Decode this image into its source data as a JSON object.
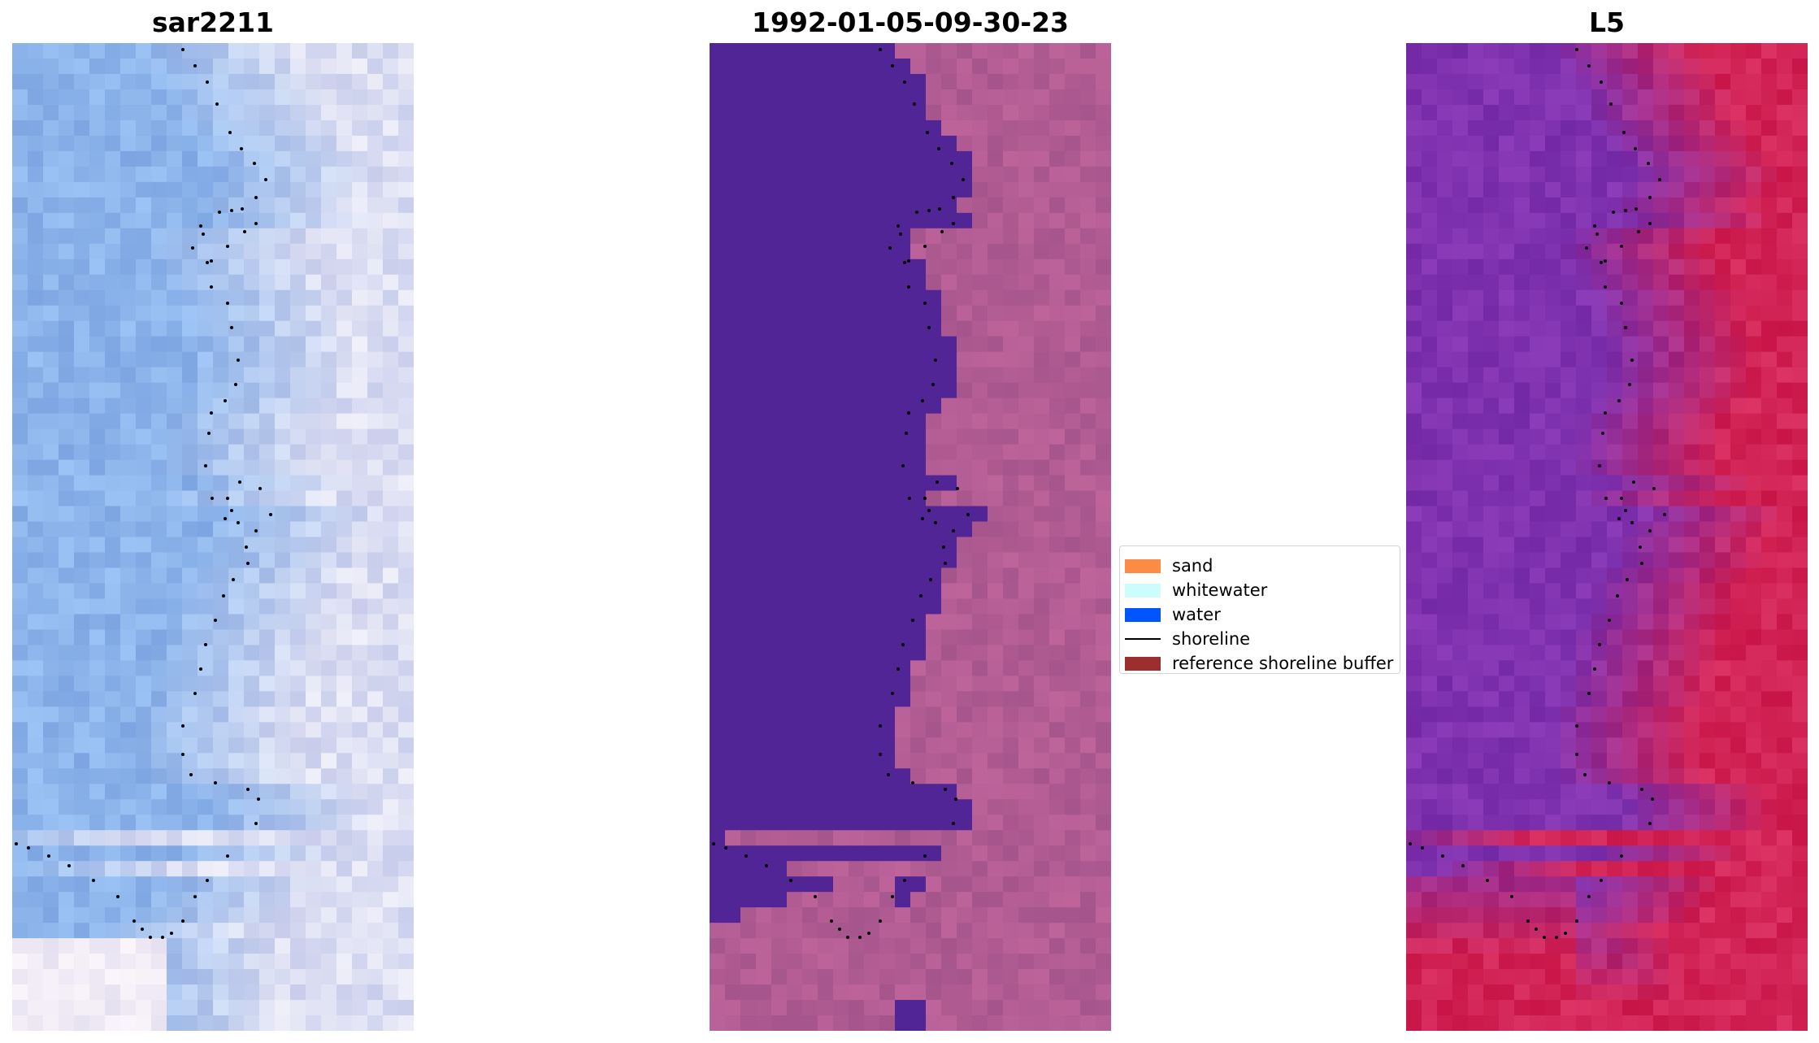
{
  "panels": [
    {
      "id": "rgb",
      "title": "sar2211"
    },
    {
      "id": "classified",
      "title": "1992-01-05-09-30-23"
    },
    {
      "id": "index",
      "title": "L5"
    }
  ],
  "legend": {
    "items": [
      {
        "label": "sand",
        "color": "#fb8c45",
        "kind": "patch"
      },
      {
        "label": "whitewater",
        "color": "#ccfcfc",
        "kind": "patch"
      },
      {
        "label": "water",
        "color": "#0055ff",
        "kind": "patch"
      },
      {
        "label": "shoreline",
        "color": "#000000",
        "kind": "line"
      },
      {
        "label": "reference shoreline buffer",
        "color": "#9b2e2e",
        "kind": "patch"
      }
    ]
  },
  "colors": {
    "classified_water": "#512596",
    "classified_land": "#b05b92",
    "shoreline_dots": "#000000"
  }
}
